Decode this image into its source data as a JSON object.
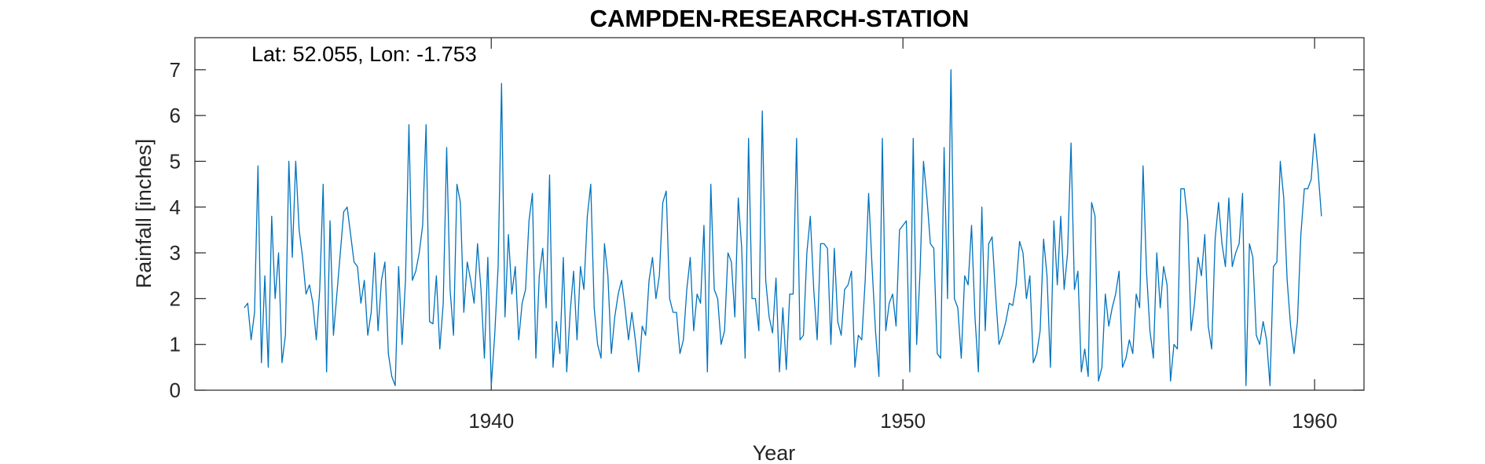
{
  "chart_data": {
    "type": "line",
    "title": "CAMPDEN-RESEARCH-STATION",
    "xlabel": "Year",
    "ylabel": "Rainfall [inches]",
    "annotation": "Lat: 52.055, Lon: -1.753",
    "xlim": [
      1932.8,
      1961.2
    ],
    "ylim": [
      0,
      7.7
    ],
    "xticks": [
      1940,
      1950,
      1960
    ],
    "yticks": [
      0,
      1,
      2,
      3,
      4,
      5,
      6,
      7
    ],
    "grid": false,
    "line_color": "#0072BD",
    "series": [
      {
        "start": "1934-01",
        "frequency": "monthly",
        "values": [
          1.8,
          1.9,
          1.1,
          1.7,
          4.9,
          0.6,
          2.5,
          0.5,
          3.8,
          2.0,
          3.0,
          0.6,
          1.2,
          5.0,
          2.9,
          5.0,
          3.5,
          2.9,
          2.1,
          2.3,
          1.9,
          1.1,
          2.2,
          4.5,
          0.4,
          3.7,
          1.2,
          2.1,
          3.0,
          3.9,
          4.0,
          3.4,
          2.8,
          2.7,
          1.9,
          2.4,
          1.2,
          1.7,
          3.0,
          1.3,
          2.4,
          2.8,
          0.8,
          0.3,
          0.1,
          2.7,
          1.0,
          2.4,
          5.8,
          2.4,
          2.6,
          3.0,
          3.6,
          5.8,
          1.5,
          1.45,
          2.5,
          0.9,
          1.9,
          5.3,
          2.2,
          1.2,
          4.5,
          4.1,
          1.7,
          2.8,
          2.4,
          1.9,
          3.2,
          2.2,
          0.7,
          2.9,
          0.1,
          1.2,
          2.7,
          6.7,
          1.6,
          3.4,
          2.1,
          2.7,
          1.1,
          1.9,
          2.2,
          3.7,
          4.3,
          0.7,
          2.5,
          3.1,
          1.8,
          4.7,
          0.5,
          1.5,
          0.8,
          2.9,
          0.4,
          1.7,
          2.6,
          1.1,
          2.7,
          2.2,
          3.8,
          4.5,
          1.8,
          1.0,
          0.7,
          3.2,
          2.5,
          0.8,
          1.6,
          2.1,
          2.4,
          1.8,
          1.1,
          1.7,
          1.1,
          0.4,
          1.4,
          1.2,
          2.4,
          2.9,
          2.0,
          2.5,
          4.1,
          4.35,
          2.0,
          1.7,
          1.7,
          0.8,
          1.1,
          2.2,
          2.9,
          1.3,
          2.1,
          1.9,
          3.6,
          0.4,
          4.5,
          2.2,
          2.0,
          1.0,
          1.3,
          3.0,
          2.8,
          1.6,
          4.2,
          3.1,
          0.7,
          5.5,
          2.0,
          2.0,
          1.3,
          6.1,
          2.4,
          1.6,
          1.25,
          2.45,
          0.4,
          1.8,
          0.45,
          2.1,
          2.1,
          5.5,
          1.1,
          1.2,
          3.0,
          3.8,
          2.2,
          1.1,
          3.2,
          3.2,
          3.1,
          1.0,
          3.1,
          1.5,
          1.2,
          2.2,
          2.3,
          2.6,
          0.5,
          1.2,
          1.1,
          2.4,
          4.3,
          2.7,
          1.3,
          0.3,
          5.5,
          1.3,
          1.9,
          2.1,
          1.4,
          3.5,
          3.6,
          3.7,
          0.4,
          5.5,
          1.0,
          2.6,
          5.0,
          4.2,
          3.2,
          3.1,
          0.8,
          0.7,
          5.3,
          2.0,
          7.0,
          2.0,
          1.8,
          0.7,
          2.5,
          2.3,
          3.6,
          1.6,
          0.4,
          4.0,
          1.3,
          3.2,
          3.35,
          2.1,
          1.0,
          1.2,
          1.5,
          1.9,
          1.85,
          2.3,
          3.25,
          3.0,
          2.0,
          2.5,
          0.6,
          0.8,
          1.3,
          3.3,
          2.5,
          0.5,
          3.7,
          2.3,
          3.8,
          2.2,
          3.0,
          5.4,
          2.2,
          2.6,
          0.4,
          0.9,
          0.3,
          4.1,
          3.8,
          0.2,
          0.5,
          2.1,
          1.4,
          1.8,
          2.1,
          2.6,
          0.5,
          0.7,
          1.1,
          0.8,
          2.1,
          1.8,
          4.9,
          2.6,
          1.3,
          0.7,
          3.0,
          1.8,
          2.7,
          2.3,
          0.2,
          1.0,
          0.9,
          4.4,
          4.4,
          3.7,
          1.3,
          1.9,
          2.9,
          2.5,
          3.4,
          1.4,
          0.9,
          3.3,
          4.1,
          3.2,
          2.7,
          4.2,
          2.7,
          3.0,
          3.2,
          4.3,
          0.1,
          3.2,
          2.9,
          1.2,
          1.0,
          1.5,
          1.1,
          0.1,
          2.7,
          2.8,
          5.0,
          4.2,
          2.4,
          1.4,
          0.8,
          1.5,
          3.4,
          4.4,
          4.4,
          4.6,
          5.6,
          4.8,
          3.8
        ]
      }
    ]
  }
}
